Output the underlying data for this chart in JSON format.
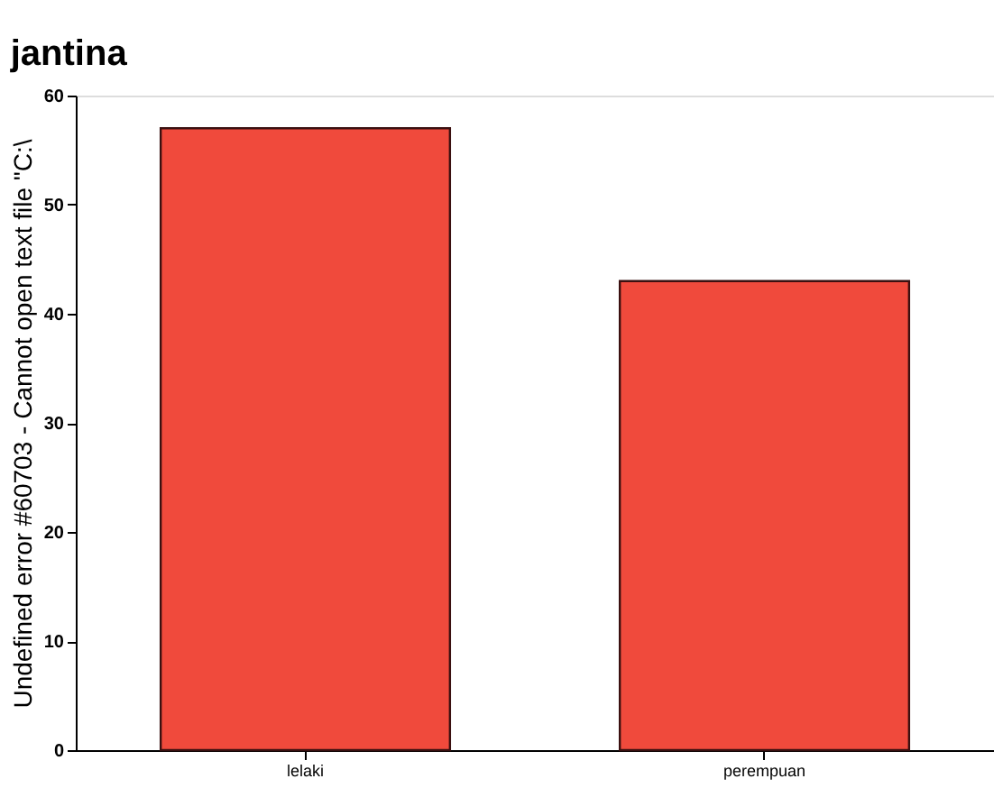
{
  "chart_data": {
    "type": "bar",
    "title": "jantina",
    "ylabel": "Undefined error #60703 - Cannot open text file \"C:\\",
    "categories": [
      "lelaki",
      "perempuan"
    ],
    "values": [
      57,
      43
    ],
    "color": "#f04a3c",
    "ylim": [
      0,
      60
    ],
    "yticks": [
      0,
      10,
      20,
      30,
      40,
      50,
      60
    ],
    "grid": false
  }
}
